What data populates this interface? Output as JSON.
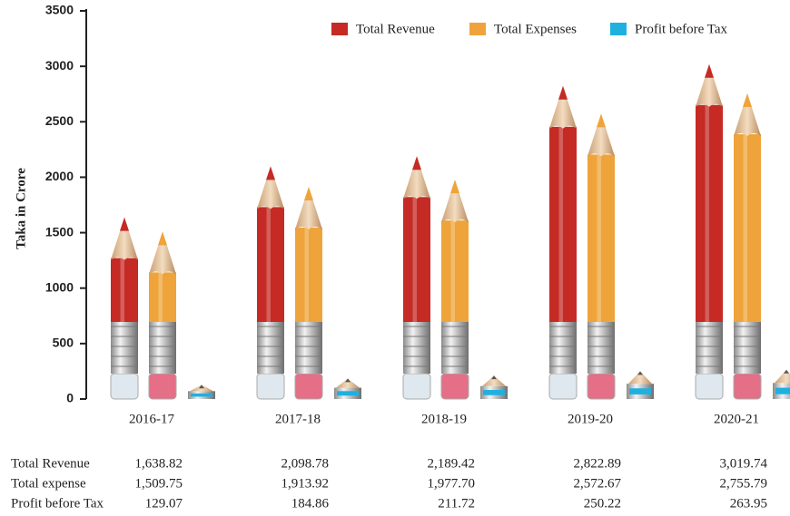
{
  "chart_data": {
    "type": "pencil-bar",
    "y_label": "Taka in Crore",
    "categories": [
      "2016-17",
      "2017-18",
      "2018-19",
      "2019-20",
      "2020-21"
    ],
    "series": [
      {
        "name": "Total Revenue",
        "row_label": "Total Revenue",
        "color": "#c52a25",
        "values": [
          1638.82,
          2098.78,
          2189.42,
          2822.89,
          3019.74
        ],
        "value_labels": [
          "1,638.82",
          "2,098.78",
          "2,189.42",
          "2,822.89",
          "3,019.74"
        ]
      },
      {
        "name": "Total Expenses",
        "row_label": "Total expense",
        "color": "#eea43a",
        "values": [
          1509.75,
          1913.92,
          1977.7,
          2572.67,
          2755.79
        ],
        "value_labels": [
          "1,509.75",
          "1,913.92",
          "1,977.70",
          "2,572.67",
          "2,755.79"
        ]
      },
      {
        "name": "Profit before Tax",
        "row_label": "Profit before Tax",
        "color": "#1fb0e0",
        "values": [
          129.07,
          184.86,
          211.72,
          250.22,
          263.95
        ],
        "value_labels": [
          "129.07",
          "184.86",
          "211.72",
          "250.22",
          "263.95"
        ]
      }
    ],
    "ylim": [
      0,
      3500
    ],
    "yticks": [
      0,
      500,
      1000,
      1500,
      2000,
      2500,
      3000,
      3500
    ],
    "legend": "top-right"
  }
}
